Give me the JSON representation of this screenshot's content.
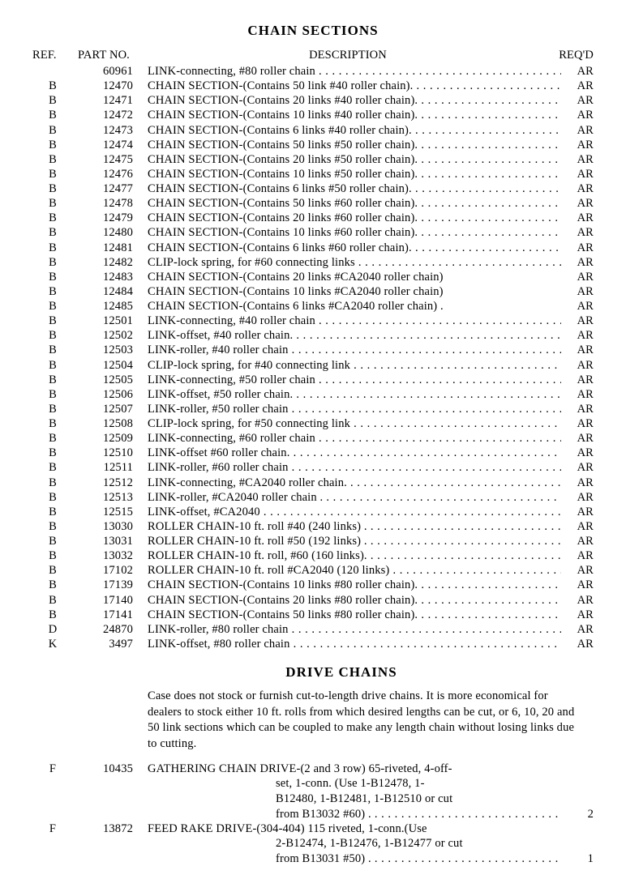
{
  "title1": "CHAIN SECTIONS",
  "headers": {
    "ref": "REF.",
    "part": "PART NO.",
    "desc": "DESCRIPTION",
    "reqd": "REQ'D"
  },
  "rows": [
    {
      "ref": "",
      "part": "60961",
      "desc": "LINK-connecting, #80 roller chain",
      "reqd": "AR"
    },
    {
      "ref": "B",
      "part": "12470",
      "desc": "CHAIN SECTION-(Contains 50 link #40 roller chain).",
      "reqd": "AR"
    },
    {
      "ref": "B",
      "part": "12471",
      "desc": "CHAIN SECTION-(Contains 20 links #40 roller chain).",
      "reqd": "AR"
    },
    {
      "ref": "B",
      "part": "12472",
      "desc": "CHAIN SECTION-(Contains 10 links #40 roller chain).",
      "reqd": "AR"
    },
    {
      "ref": "B",
      "part": "12473",
      "desc": "CHAIN SECTION-(Contains 6 links #40 roller chain).",
      "reqd": "AR"
    },
    {
      "ref": "B",
      "part": "12474",
      "desc": "CHAIN SECTION-(Contains 50 links #50 roller chain).",
      "reqd": "AR"
    },
    {
      "ref": "B",
      "part": "12475",
      "desc": "CHAIN SECTION-(Contains 20 links #50 roller chain).",
      "reqd": "AR"
    },
    {
      "ref": "B",
      "part": "12476",
      "desc": "CHAIN SECTION-(Contains 10 links #50 roller chain).",
      "reqd": "AR"
    },
    {
      "ref": "B",
      "part": "12477",
      "desc": "CHAIN SECTION-(Contains 6 links #50 roller chain).",
      "reqd": "AR"
    },
    {
      "ref": "B",
      "part": "12478",
      "desc": "CHAIN SECTION-(Contains 50 links #60 roller chain).",
      "reqd": "AR"
    },
    {
      "ref": "B",
      "part": "12479",
      "desc": "CHAIN SECTION-(Contains 20 links #60 roller chain).",
      "reqd": "AR"
    },
    {
      "ref": "B",
      "part": "12480",
      "desc": "CHAIN SECTION-(Contains 10 links #60 roller chain).",
      "reqd": "AR"
    },
    {
      "ref": "B",
      "part": "12481",
      "desc": "CHAIN SECTION-(Contains 6 links #60 roller chain).",
      "reqd": "AR"
    },
    {
      "ref": "B",
      "part": "12482",
      "desc": "CLIP-lock spring, for #60 connecting links",
      "reqd": "AR"
    },
    {
      "ref": "B",
      "part": "12483",
      "desc": "CHAIN SECTION-(Contains 20 links #CA2040 roller chain)",
      "reqd": "AR",
      "nodots": true
    },
    {
      "ref": "B",
      "part": "12484",
      "desc": "CHAIN SECTION-(Contains 10 links #CA2040 roller chain)",
      "reqd": "AR",
      "nodots": true
    },
    {
      "ref": "B",
      "part": "12485",
      "desc": "CHAIN SECTION-(Contains 6 links #CA2040 roller chain) .",
      "reqd": "AR",
      "nodots": true
    },
    {
      "ref": "B",
      "part": "12501",
      "desc": "LINK-connecting, #40 roller chain",
      "reqd": "AR"
    },
    {
      "ref": "B",
      "part": "12502",
      "desc": "LINK-offset, #40 roller chain.",
      "reqd": "AR"
    },
    {
      "ref": "B",
      "part": "12503",
      "desc": "LINK-roller, #40 roller chain",
      "reqd": "AR"
    },
    {
      "ref": "B",
      "part": "12504",
      "desc": "CLIP-lock spring, for #40 connecting link",
      "reqd": "AR"
    },
    {
      "ref": "B",
      "part": "12505",
      "desc": "LINK-connecting, #50 roller chain",
      "reqd": "AR"
    },
    {
      "ref": "B",
      "part": "12506",
      "desc": "LINK-offset, #50 roller chain.",
      "reqd": "AR"
    },
    {
      "ref": "B",
      "part": "12507",
      "desc": "LINK-roller, #50 roller chain",
      "reqd": "AR"
    },
    {
      "ref": "B",
      "part": "12508",
      "desc": "CLIP-lock spring, for #50 connecting link",
      "reqd": "AR"
    },
    {
      "ref": "B",
      "part": "12509",
      "desc": "LINK-connecting, #60 roller chain",
      "reqd": "AR"
    },
    {
      "ref": "B",
      "part": "12510",
      "desc": "LINK-offset  #60 roller chain.",
      "reqd": "AR"
    },
    {
      "ref": "B",
      "part": "12511",
      "desc": "LINK-roller, #60 roller chain",
      "reqd": "AR"
    },
    {
      "ref": "B",
      "part": "12512",
      "desc": "LINK-connecting, #CA2040 roller chain.",
      "reqd": "AR"
    },
    {
      "ref": "B",
      "part": "12513",
      "desc": "LINK-roller, #CA2040 roller chain .",
      "reqd": "AR"
    },
    {
      "ref": "B",
      "part": "12515",
      "desc": "LINK-offset, #CA2040",
      "reqd": "AR"
    },
    {
      "ref": "B",
      "part": "13030",
      "desc": "ROLLER CHAIN-10 ft. roll #40 (240 links) .",
      "reqd": "AR"
    },
    {
      "ref": "B",
      "part": "13031",
      "desc": "ROLLER CHAIN-10 ft. roll #50 (192 links) .",
      "reqd": "AR"
    },
    {
      "ref": "B",
      "part": "13032",
      "desc": "ROLLER CHAIN-10 ft. roll, #60 (160 links).",
      "reqd": "AR"
    },
    {
      "ref": "B",
      "part": "17102",
      "desc": "ROLLER CHAIN-10 ft. roll #CA2040 (120 links)",
      "reqd": "AR"
    },
    {
      "ref": "B",
      "part": "17139",
      "desc": "CHAIN SECTION-(Contains 10 links #80 roller chain).",
      "reqd": "AR"
    },
    {
      "ref": "B",
      "part": "17140",
      "desc": "CHAIN SECTION-(Contains 20 links #80 roller chain).",
      "reqd": "AR"
    },
    {
      "ref": "B",
      "part": "17141",
      "desc": "CHAIN SECTION-(Contains 50 links #80 roller chain).",
      "reqd": "AR"
    },
    {
      "ref": "D",
      "part": "24870",
      "desc": "LINK-roller, #80 roller chain",
      "reqd": "AR"
    },
    {
      "ref": "K",
      "part": "3497",
      "desc": "LINK-offset, #80 roller chain",
      "reqd": "AR"
    }
  ],
  "title2": "DRIVE CHAINS",
  "note": "Case does not stock or furnish cut-to-length drive chains. It is more economical for dealers to stock either 10 ft. rolls from which desired lengths can be cut, or 6, 10, 20 and 50 link sections which can be coupled to make any length chain without losing links due to cutting.",
  "drive1": {
    "ref": "F",
    "part": "10435",
    "l1": "GATHERING CHAIN DRIVE-(2 and 3 row) 65-riveted, 4-off-",
    "l2": "set, 1-conn. (Use 1-B12478, 1-",
    "l3": "B12480, 1-B12481, 1-B12510 or cut",
    "l4": "from B13032 #60) .",
    "reqd": "2"
  },
  "drive2": {
    "ref": "F",
    "part": "13872",
    "l1": "FEED RAKE DRIVE-(304-404) 115 riveted, 1-conn.(Use",
    "l2": "2-B12474, 1-B12476, 1-B12477 or cut",
    "l3": "from B13031 #50) .",
    "reqd": "1"
  }
}
